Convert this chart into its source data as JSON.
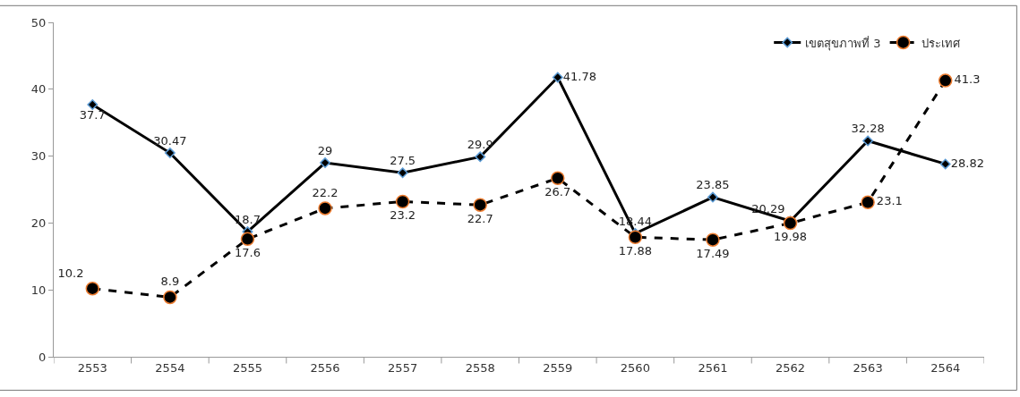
{
  "chart_data": {
    "type": "line",
    "categories": [
      "2553",
      "2554",
      "2555",
      "2556",
      "2557",
      "2558",
      "2559",
      "2560",
      "2561",
      "2562",
      "2563",
      "2564"
    ],
    "series": [
      {
        "name": "เขตสุขภาพที่ 3",
        "color": "#000000",
        "marker": "diamond",
        "line_style": "solid",
        "values": [
          37.7,
          30.47,
          18.7,
          29,
          27.5,
          29.9,
          41.78,
          18.44,
          23.85,
          20.29,
          32.28,
          28.82
        ]
      },
      {
        "name": "ประเทศ",
        "color": "#000000",
        "marker": "circle",
        "line_style": "dashed",
        "values": [
          10.2,
          8.9,
          17.6,
          22.2,
          23.2,
          22.7,
          26.7,
          17.88,
          17.49,
          19.98,
          23.1,
          41.3
        ]
      }
    ],
    "ylim": [
      0,
      50
    ],
    "yticks": [
      0,
      10,
      20,
      30,
      40,
      50
    ],
    "legend": "top right",
    "data_labels": true
  }
}
